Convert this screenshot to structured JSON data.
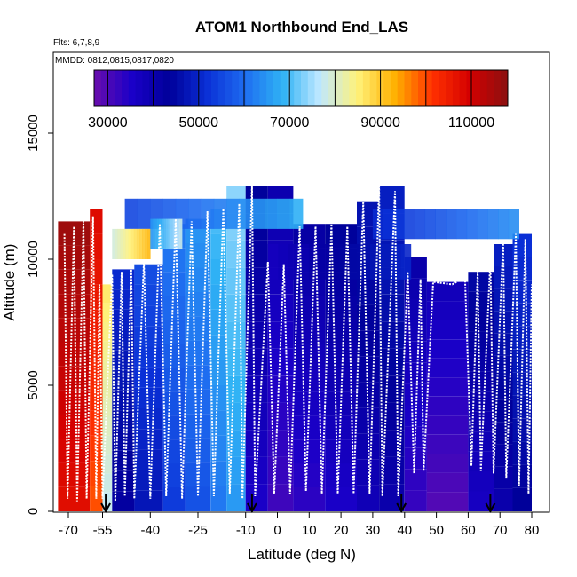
{
  "chart_data": {
    "type": "heatmap",
    "title": "ATOM1 Northbound End_LAS",
    "subtitle_flights": "Flts: 6,7,8,9",
    "subtitle_dates": "MMDD: 0812,0815,0817,0820",
    "xlabel": "Latitude (deg N)",
    "ylabel": "Altitude (m)",
    "xlim": [
      -70,
      82
    ],
    "ylim": [
      0,
      17500
    ],
    "x_ticks": [
      -70,
      -55,
      -40,
      -25,
      -10,
      0,
      10,
      20,
      30,
      40,
      50,
      60,
      70,
      80
    ],
    "y_ticks": [
      0,
      5000,
      10000,
      15000
    ],
    "colorbar": {
      "range": [
        27000,
        118000
      ],
      "tick_values": [
        30000,
        50000,
        70000,
        90000,
        110000
      ],
      "colors": [
        "#6a0dad",
        "#1a00c8",
        "#00009a",
        "#0a2fd6",
        "#1e6cf0",
        "#2fb2f5",
        "#bfe8ff",
        "#fff27a",
        "#ffb000",
        "#ff3000",
        "#d40000",
        "#8a1010"
      ]
    },
    "arrows_latitude": [
      -54,
      -8,
      39,
      67
    ],
    "columns": [
      {
        "x0": -69,
        "x1": -59,
        "top": 11500,
        "value": 112000
      },
      {
        "x0": -59,
        "x1": -55,
        "top": 12000,
        "value": 104000
      },
      {
        "x0": -55,
        "x1": -52,
        "top": 9000,
        "value": 82000
      },
      {
        "x0": -52,
        "x1": -45,
        "top": 9600,
        "value": 47000
      },
      {
        "x0": -45,
        "x1": -36,
        "top": 9800,
        "value": 52000
      },
      {
        "x0": -36,
        "x1": -29,
        "top": 11400,
        "value": 58000
      },
      {
        "x0": -29,
        "x1": -21,
        "top": 11600,
        "value": 61000
      },
      {
        "x0": -21,
        "x1": -16,
        "top": 12000,
        "value": 66000
      },
      {
        "x0": -16,
        "x1": -10,
        "top": 12900,
        "value": 70000
      },
      {
        "x0": -10,
        "x1": -3,
        "top": 12900,
        "value": 40000
      },
      {
        "x0": -3,
        "x1": 5,
        "top": 12900,
        "value": 36000
      },
      {
        "x0": 5,
        "x1": 15,
        "top": 11400,
        "value": 38000
      },
      {
        "x0": 15,
        "x1": 25,
        "top": 11400,
        "value": 40000
      },
      {
        "x0": 25,
        "x1": 32,
        "top": 12300,
        "value": 43000
      },
      {
        "x0": 32,
        "x1": 40,
        "top": 12900,
        "value": 45000
      },
      {
        "x0": 40,
        "x1": 47,
        "top": 10100,
        "value": 37000
      },
      {
        "x0": 47,
        "x1": 60,
        "top": 9100,
        "value": 34000
      },
      {
        "x0": 60,
        "x1": 68,
        "top": 9500,
        "value": 41000
      },
      {
        "x0": 68,
        "x1": 74,
        "top": 10600,
        "value": 45000
      },
      {
        "x0": 74,
        "x1": 80,
        "top": 11000,
        "value": 48000
      }
    ],
    "upper_bands": [
      {
        "x0": -48,
        "x1": 8,
        "y0": 11200,
        "y1": 12400,
        "value": 62000
      },
      {
        "x0": 30,
        "x1": 76,
        "y0": 10800,
        "y1": 12000,
        "value": 58000
      },
      {
        "x0": -52,
        "x1": -40,
        "y0": 10000,
        "y1": 11200,
        "value": 86000
      },
      {
        "x0": -40,
        "x1": -30,
        "y0": 10400,
        "y1": 11600,
        "value": 72000
      },
      {
        "x0": -3,
        "x1": 42,
        "y0": 9200,
        "y1": 10600,
        "value": 44000
      }
    ],
    "flight_track": [
      [
        -67,
        11000
      ],
      [
        -66,
        500
      ],
      [
        -64,
        11300
      ],
      [
        -63,
        400
      ],
      [
        -61,
        11500
      ],
      [
        -60,
        500
      ],
      [
        -58,
        11700
      ],
      [
        -57,
        500
      ],
      [
        -56,
        9000
      ],
      [
        -55,
        500
      ],
      [
        -52,
        9400
      ],
      [
        -51,
        400
      ],
      [
        -49,
        9500
      ],
      [
        -48,
        600
      ],
      [
        -46,
        9600
      ],
      [
        -45,
        500
      ],
      [
        -42,
        9900
      ],
      [
        -40,
        500
      ],
      [
        -37,
        11400
      ],
      [
        -35,
        600
      ],
      [
        -32,
        11600
      ],
      [
        -30,
        500
      ],
      [
        -27,
        11500
      ],
      [
        -25,
        600
      ],
      [
        -22,
        11900
      ],
      [
        -20,
        600
      ],
      [
        -17,
        12000
      ],
      [
        -15,
        700
      ],
      [
        -12,
        12200
      ],
      [
        -11,
        500
      ],
      [
        -8,
        12900
      ],
      [
        -7,
        600
      ],
      [
        -3,
        9900
      ],
      [
        -1,
        700
      ],
      [
        2,
        9800
      ],
      [
        4,
        700
      ],
      [
        7,
        11300
      ],
      [
        9,
        800
      ],
      [
        12,
        11300
      ],
      [
        14,
        700
      ],
      [
        17,
        11400
      ],
      [
        19,
        700
      ],
      [
        22,
        11300
      ],
      [
        24,
        700
      ],
      [
        27,
        12300
      ],
      [
        29,
        700
      ],
      [
        32,
        12900
      ],
      [
        33,
        600
      ],
      [
        37,
        12700
      ],
      [
        38,
        600
      ],
      [
        41,
        9500
      ],
      [
        43,
        1500
      ],
      [
        45,
        9200
      ],
      [
        46,
        1600
      ],
      [
        49,
        9100
      ],
      [
        55,
        9000
      ],
      [
        59,
        9300
      ],
      [
        61,
        1800
      ],
      [
        63,
        9500
      ],
      [
        64,
        1600
      ],
      [
        67,
        10000
      ],
      [
        68,
        1500
      ],
      [
        71,
        10700
      ],
      [
        72,
        1300
      ],
      [
        75,
        11000
      ],
      [
        76,
        1000
      ],
      [
        78,
        10800
      ],
      [
        79,
        700
      ],
      [
        80,
        9000
      ]
    ]
  }
}
